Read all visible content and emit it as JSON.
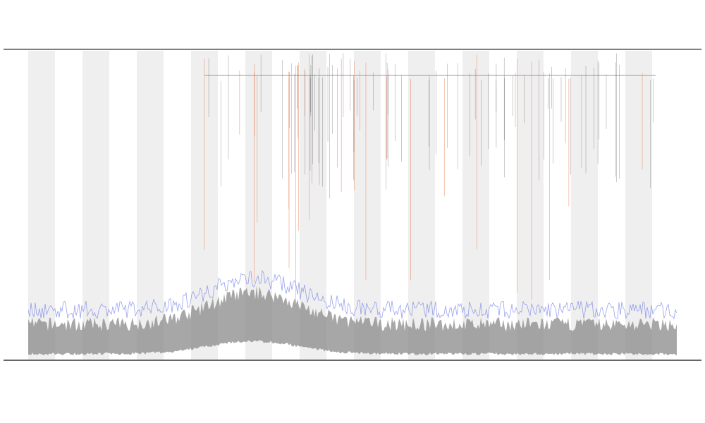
{
  "chart_data": {
    "type": "line"
  }
}
